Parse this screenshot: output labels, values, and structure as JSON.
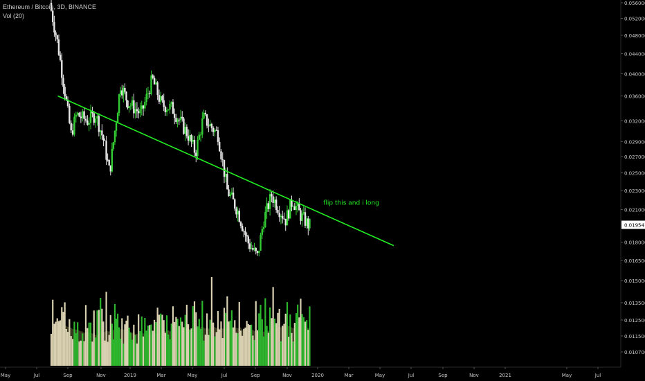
{
  "header": {
    "symbol_line": "Ethereum / Bitcoin, 3D, BINANCE",
    "volume_line": "Vol (20)"
  },
  "colors": {
    "background": "#000000",
    "axis_text": "#c8c8c8",
    "candle_up": "#33cc33",
    "candle_down": "#e6e6e6",
    "volume_up": "#2db52d",
    "volume_down": "#d8d0b0",
    "volume_ma_fill": "#4a4a2a",
    "trendline": "#22ee22",
    "annotation": "#22ee22",
    "last_price_bg": "#ffffff",
    "last_price_text": "#000000"
  },
  "chart_data": {
    "type": "candlestick",
    "title": "Ethereum / Bitcoin, 3D, BINANCE",
    "x_tick_labels": [
      "May",
      "Jul",
      "Sep",
      "Nov",
      "2019",
      "Mar",
      "May",
      "Jul",
      "Sep",
      "Nov",
      "2020",
      "Mar",
      "May",
      "Jul",
      "Sep",
      "Nov",
      "2021",
      "May",
      "Jul"
    ],
    "y_tick_labels": [
      "0.056000",
      "0.052000",
      "0.048000",
      "0.044000",
      "0.040000",
      "0.036000",
      "0.032000",
      "0.029000",
      "0.027000",
      "0.025000",
      "0.023000",
      "0.021000",
      "0.019541",
      "0.018000",
      "0.016500",
      "0.015000",
      "0.013500",
      "0.012500",
      "0.011500",
      "0.010700"
    ],
    "y_scale": "log",
    "last_price": "0.019541",
    "price_series": {
      "x_range": [
        "2018-07-30",
        "2019-12-17"
      ],
      "close_path": [
        [
          "2018-07-30",
          0.056
        ],
        [
          "2018-08-15",
          0.046
        ],
        [
          "2018-08-27",
          0.038
        ],
        [
          "2018-09-10",
          0.03
        ],
        [
          "2018-09-20",
          0.033
        ],
        [
          "2018-10-10",
          0.032
        ],
        [
          "2018-10-25",
          0.033
        ],
        [
          "2018-11-10",
          0.029
        ],
        [
          "2018-11-22",
          0.025
        ],
        [
          "2018-12-15",
          0.038
        ],
        [
          "2018-12-30",
          0.035
        ],
        [
          "2019-01-25",
          0.033
        ],
        [
          "2019-02-15",
          0.039
        ],
        [
          "2019-03-05",
          0.0345
        ],
        [
          "2019-03-25",
          0.034
        ],
        [
          "2019-04-25",
          0.03
        ],
        [
          "2019-05-10",
          0.0275
        ],
        [
          "2019-05-25",
          0.0325
        ],
        [
          "2019-06-10",
          0.031
        ],
        [
          "2019-06-22",
          0.03
        ],
        [
          "2019-07-10",
          0.023
        ],
        [
          "2019-07-30",
          0.021
        ],
        [
          "2019-08-20",
          0.018
        ],
        [
          "2019-09-08",
          0.0168
        ],
        [
          "2019-09-20",
          0.02
        ],
        [
          "2019-10-05",
          0.0225
        ],
        [
          "2019-10-20",
          0.021
        ],
        [
          "2019-11-01",
          0.02
        ],
        [
          "2019-11-15",
          0.022
        ],
        [
          "2019-11-30",
          0.0205
        ],
        [
          "2019-12-17",
          0.0195
        ]
      ]
    },
    "volume": {
      "label": "Vol (20)"
    },
    "annotations": [
      {
        "type": "trendline",
        "from": [
          "2018-08-12",
          0.036
        ],
        "to": [
          "2020-05-28",
          0.0177
        ]
      },
      {
        "type": "text",
        "text": "flip this and i long",
        "at": [
          "2020-01-12",
          0.0215
        ]
      }
    ]
  }
}
